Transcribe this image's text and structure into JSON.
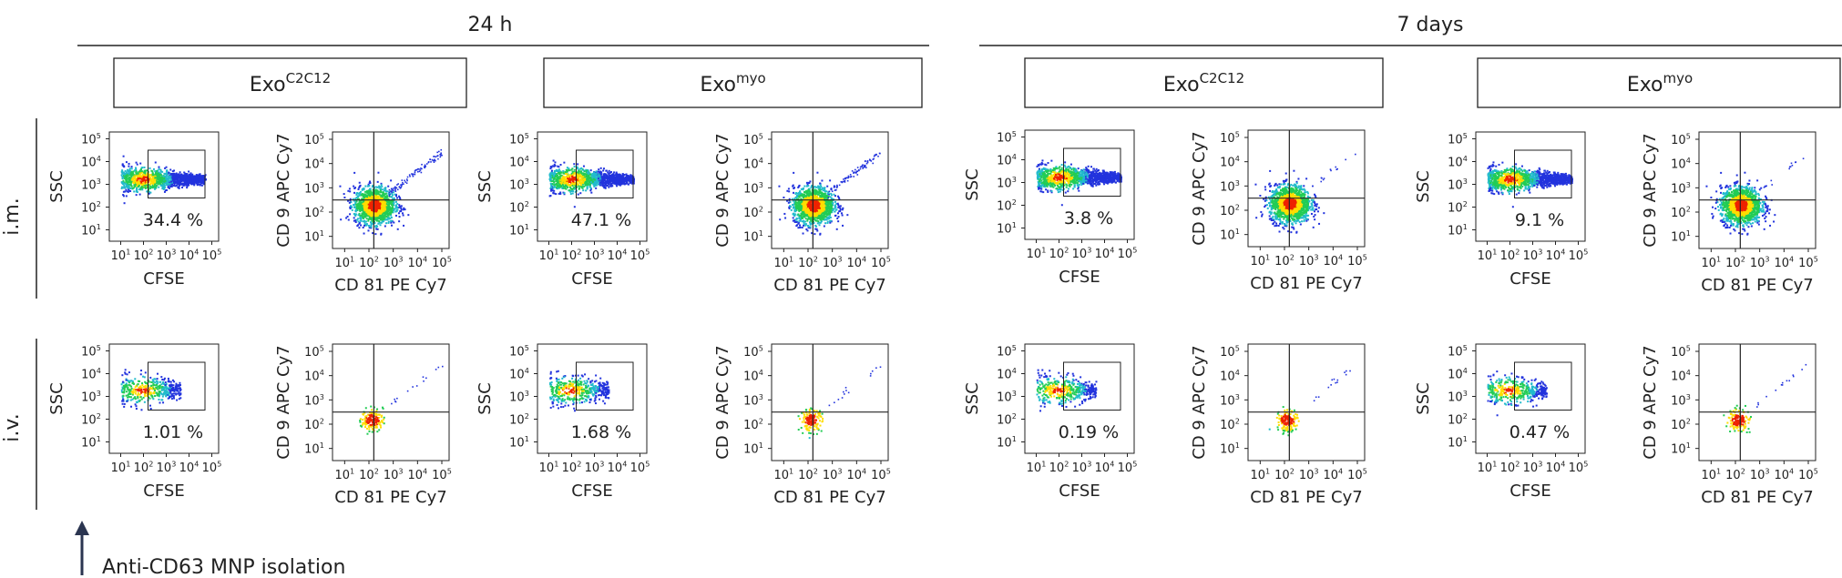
{
  "figure": {
    "time_groups": [
      {
        "label": "24 h"
      },
      {
        "label": "7 days"
      }
    ],
    "exo_groups": [
      {
        "base": "Exo",
        "sup": "C2C12"
      },
      {
        "base": "Exo",
        "sup": "myo"
      },
      {
        "base": "Exo",
        "sup": "C2C12"
      },
      {
        "base": "Exo",
        "sup": "myo"
      }
    ],
    "route_labels": [
      "i.m.",
      "i.v."
    ],
    "arrow_label": "Anti-CD63 MNP isolation"
  },
  "chart_data": {
    "type": "scatter",
    "kind": "flow-cytometry-density-plots",
    "axis_labels": {
      "gate_x": "CFSE",
      "gate_y": "SSC",
      "quad_x": "CD 81 PE Cy7",
      "quad_y": "CD 9 APC Cy7"
    },
    "tick_labels": [
      "10",
      "10",
      "10",
      "10",
      "10"
    ],
    "tick_exponents": [
      "1",
      "2",
      "3",
      "4",
      "5"
    ],
    "axis_range_log10": [
      0.5,
      5.3
    ],
    "gate_percentages": [
      {
        "time": "24 h",
        "exo": "C2C12",
        "route": "i.m.",
        "value": "34.4  %"
      },
      {
        "time": "24 h",
        "exo": "myo",
        "route": "i.m.",
        "value": "47.1  %"
      },
      {
        "time": "7 days",
        "exo": "C2C12",
        "route": "i.m.",
        "value": "3.8  %"
      },
      {
        "time": "7 days",
        "exo": "myo",
        "route": "i.m.",
        "value": "9.1 %"
      },
      {
        "time": "24 h",
        "exo": "C2C12",
        "route": "i.v.",
        "value": "1.01 %"
      },
      {
        "time": "24 h",
        "exo": "myo",
        "route": "i.v.",
        "value": "1.68 %"
      },
      {
        "time": "7 days",
        "exo": "C2C12",
        "route": "i.v.",
        "value": "0.19 %"
      },
      {
        "time": "7 days",
        "exo": "myo",
        "route": "i.v.",
        "value": "0.47 %"
      }
    ],
    "gate_log_bounds": {
      "x": [
        2.2,
        4.7
      ],
      "y": [
        2.4,
        4.5
      ]
    },
    "quadrant_log_threshold": {
      "x": 2.2,
      "y": 2.5
    },
    "density": {
      "im": {
        "gate_center": [
          2.0,
          3.25
        ],
        "quad_center": [
          2.2,
          2.3
        ]
      },
      "iv": {
        "gate_center": [
          1.9,
          3.3
        ],
        "quad_center": [
          2.1,
          2.2
        ]
      }
    }
  },
  "colors": {
    "density_low": "#2233dd",
    "density_mid": "#22cc55",
    "density_high": "#ffdd00",
    "density_peak": "#ee2200",
    "axis": "#222222"
  }
}
